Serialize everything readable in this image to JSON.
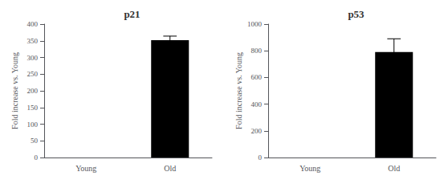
{
  "chart_data": [
    {
      "type": "bar",
      "title": "p21",
      "categories": [
        "Young",
        "Old"
      ],
      "values": [
        0,
        352
      ],
      "errors": [
        0,
        12
      ],
      "color": "#000000",
      "ylabel": "Fold increase vs. Young",
      "ylim": [
        0,
        400
      ],
      "yticks": [
        0,
        50,
        100,
        150,
        200,
        250,
        300,
        350,
        400
      ],
      "grid": false
    },
    {
      "type": "bar",
      "title": "p53",
      "categories": [
        "Young",
        "Old"
      ],
      "values": [
        0,
        790
      ],
      "errors": [
        0,
        100
      ],
      "color": "#000000",
      "ylabel": "Fold increase vs. Young",
      "ylim": [
        0,
        1000
      ],
      "yticks": [
        0,
        200,
        400,
        600,
        800,
        1000
      ],
      "grid": false
    }
  ]
}
